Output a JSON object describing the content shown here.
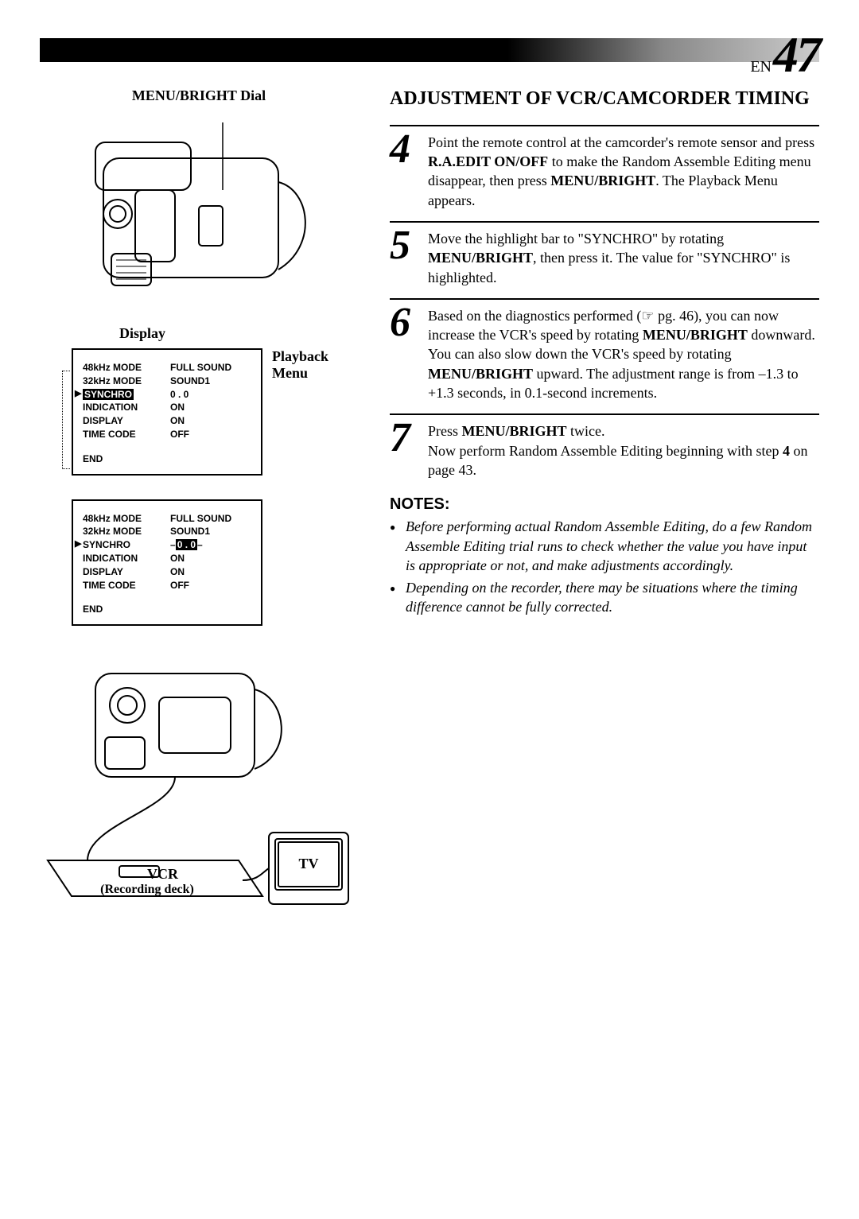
{
  "page": {
    "lang_prefix": "EN",
    "number": "47"
  },
  "left": {
    "dial_label": "MENU/BRIGHT Dial",
    "display_label": "Display",
    "playback_menu_label": "Playback Menu",
    "menu1": {
      "rows": [
        {
          "k": "48kHz MODE",
          "v": "FULL SOUND"
        },
        {
          "k": "32kHz MODE",
          "v": "SOUND1"
        },
        {
          "k": "SYNCHRO",
          "v": "0 . 0",
          "highlighted_key": true
        },
        {
          "k": "INDICATION",
          "v": "ON"
        },
        {
          "k": "DISPLAY",
          "v": "ON"
        },
        {
          "k": "TIME CODE",
          "v": "OFF"
        }
      ],
      "end": "END"
    },
    "menu2": {
      "rows": [
        {
          "k": "48kHz MODE",
          "v": "FULL SOUND"
        },
        {
          "k": "32kHz MODE",
          "v": "SOUND1"
        },
        {
          "k": "SYNCHRO",
          "v": "0 . 0",
          "tri": true,
          "boxed_value": true,
          "dashes": true
        },
        {
          "k": "INDICATION",
          "v": "ON"
        },
        {
          "k": "DISPLAY",
          "v": "ON"
        },
        {
          "k": "TIME CODE",
          "v": "OFF"
        }
      ],
      "end": "END"
    },
    "vcr_label": "VCR",
    "vcr_sub": "(Recording deck)",
    "tv_label": "TV"
  },
  "right": {
    "title": "ADJUSTMENT OF VCR/CAMCORDER TIMING",
    "steps": [
      {
        "n": "4",
        "html": "Point the remote control at the camcorder's remote sensor and press <b>R.A.EDIT ON/OFF</b> to make the Random Assemble Editing menu disappear, then press <b>MENU/BRIGHT</b>. The Playback Menu appears."
      },
      {
        "n": "5",
        "html": "Move the highlight bar to \"SYNCHRO\" by rotating <b>MENU/BRIGHT</b>, then press it. The value for \"SYNCHRO\" is highlighted."
      },
      {
        "n": "6",
        "html": "Based on the diagnostics performed (☞ pg. 46), you can now increase the VCR's speed by rotating <b>MENU/BRIGHT</b> downward. You can also slow down the VCR's speed by rotating <b>MENU/BRIGHT</b> upward. The adjustment range is from –1.3 to +1.3 seconds, in 0.1-second increments."
      },
      {
        "n": "7",
        "html": "Press <b>MENU/BRIGHT</b> twice.<br>Now perform Random Assemble Editing beginning with step <b>4</b> on page 43."
      }
    ],
    "notes_heading": "NOTES:",
    "notes": [
      "Before performing actual Random Assemble Editing, do a few Random Assemble Editing trial runs to check whether the value you have input is appropriate or not, and make adjustments accordingly.",
      "Depending on the recorder, there may be situations where the timing difference cannot be fully corrected."
    ]
  },
  "colors": {
    "text": "#000000",
    "bg": "#ffffff",
    "rule": "#000000"
  }
}
